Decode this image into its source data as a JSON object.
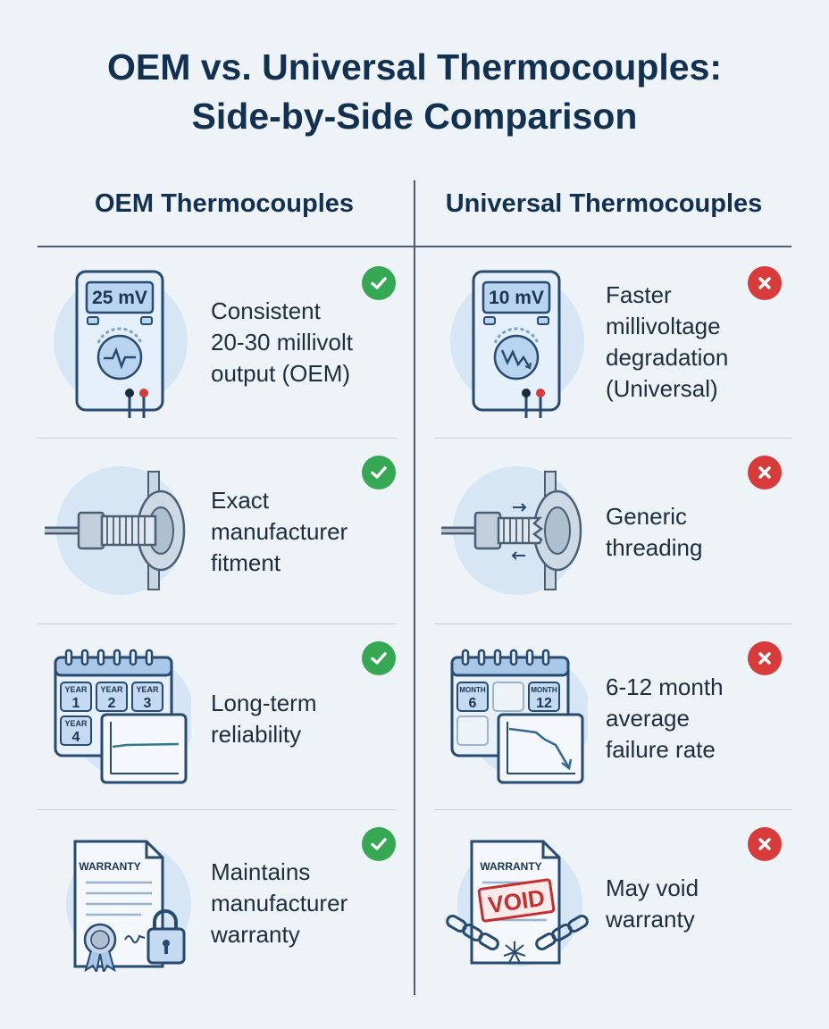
{
  "title": {
    "line1": "OEM vs. Universal Thermocouples:",
    "line2": "Side-by-Side Comparison"
  },
  "columns": {
    "oem": {
      "heading": "OEM Thermocouples",
      "status_icon": "check-icon",
      "status_color": "#34a853",
      "rows": [
        {
          "icon": "multimeter-icon",
          "meter_label": "25 mV",
          "lines": [
            "Consistent",
            "20-30 millivolt",
            "output (OEM)"
          ]
        },
        {
          "icon": "threaded-fitting-icon",
          "lines": [
            "Exact",
            "manufacturer",
            "fitment"
          ]
        },
        {
          "icon": "calendar-chart-icon",
          "tiles": [
            [
              "YEAR",
              "1"
            ],
            [
              "YEAR",
              "2"
            ],
            [
              "YEAR",
              "3"
            ],
            [
              "YEAR",
              "4"
            ]
          ],
          "lines": [
            "Long-term",
            "reliability"
          ]
        },
        {
          "icon": "warranty-document-icon",
          "doc_label": "WARRANTY",
          "lines": [
            "Maintains",
            "manufacturer",
            "warranty"
          ]
        }
      ]
    },
    "universal": {
      "heading": "Universal Thermocouples",
      "status_icon": "x-icon",
      "status_color": "#d93a3a",
      "rows": [
        {
          "icon": "multimeter-icon",
          "meter_label": "10 mV",
          "lines": [
            "Faster",
            "millivoltage",
            "degradation",
            "(Universal)"
          ]
        },
        {
          "icon": "threaded-fitting-icon",
          "lines": [
            "Generic",
            "threading"
          ]
        },
        {
          "icon": "calendar-chart-icon",
          "tiles": [
            [
              "MONTH",
              "6"
            ],
            [
              "MONTH",
              "12"
            ]
          ],
          "lines": [
            "6-12 month",
            "average",
            "failure rate"
          ]
        },
        {
          "icon": "void-warranty-icon",
          "doc_label": "WARRANTY",
          "stamp": "VOID",
          "lines": [
            "May void",
            "warranty"
          ]
        }
      ]
    }
  }
}
